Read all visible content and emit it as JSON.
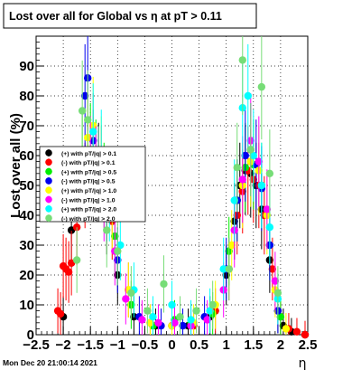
{
  "title": "Lost over all for Global vs   η at pT > 0.11",
  "footer_timestamp": "Mon Dec 20 21:00:14 2021",
  "chart_data": {
    "type": "scatter",
    "title": "Lost over all for Global vs   η at pT > 0.11",
    "xlabel": "η",
    "ylabel": "Lost over all (%)",
    "xlim": [
      -2.5,
      2.5
    ],
    "ylim": [
      0,
      100
    ],
    "x_ticks": [
      -2.5,
      -2,
      -1.5,
      -1,
      -0.5,
      0,
      0.5,
      1,
      1.5,
      2,
      2.5
    ],
    "x_tick_labels": [
      "−2.5",
      "−2",
      "−1.5",
      "−1",
      "−0.5",
      "0",
      "0.5",
      "1",
      "1.5",
      "2",
      "2.5"
    ],
    "y_ticks": [
      0,
      10,
      20,
      30,
      40,
      50,
      60,
      70,
      80,
      90
    ],
    "y_tick_labels": [
      "0",
      "10",
      "20",
      "30",
      "40",
      "50",
      "60",
      "70",
      "80",
      "90"
    ],
    "grid": true,
    "legend_position": "left-middle",
    "series": [
      {
        "name": "(+) with pT/|q| > 0.1",
        "color": "#000000",
        "x": [
          -2.0,
          -1.85,
          -1.55,
          -1.45,
          -1.35,
          -1.2,
          -1.0,
          -0.7,
          -0.3,
          0.0,
          0.3,
          0.7,
          1.0,
          1.15,
          1.25,
          1.35,
          1.45,
          1.55,
          1.65,
          1.8,
          1.95,
          2.05,
          2.2,
          2.45
        ],
        "y": [
          6,
          35,
          58,
          60,
          56,
          40,
          20,
          6,
          3,
          3,
          3,
          6,
          20,
          38,
          50,
          55,
          54,
          50,
          42,
          25,
          8,
          3,
          1,
          0
        ]
      },
      {
        "name": "(-) with pT/|q| > 0.1",
        "color": "#ff0000",
        "x": [
          -2.1,
          -2.05,
          -2.0,
          -1.95,
          -1.9,
          -1.85,
          -1.75,
          -1.6,
          -1.45,
          -1.3,
          -1.1,
          -0.8,
          -0.4,
          0.0,
          0.4,
          0.8,
          1.05,
          1.2,
          1.3,
          1.4,
          1.5,
          1.6,
          1.7,
          1.85,
          2.0,
          2.15,
          2.3,
          2.45
        ],
        "y": [
          8,
          7,
          23,
          22,
          21,
          24,
          36,
          50,
          58,
          55,
          38,
          15,
          4,
          3,
          3,
          8,
          22,
          40,
          48,
          55,
          52,
          50,
          40,
          22,
          6,
          2,
          1,
          0
        ]
      },
      {
        "name": "(+) with pT/|q| > 0.5",
        "color": "#00ee00",
        "x": [
          -1.65,
          -1.5,
          -1.4,
          -1.25,
          -1.05,
          -0.75,
          -0.35,
          0.05,
          0.35,
          0.75,
          1.05,
          1.2,
          1.35,
          1.5,
          1.65,
          1.8,
          2.0
        ],
        "y": [
          60,
          62,
          57,
          50,
          33,
          10,
          3,
          5,
          4,
          7,
          28,
          45,
          56,
          57,
          50,
          30,
          6
        ]
      },
      {
        "name": "(-) with pT/|q| > 0.5",
        "color": "#0000ee",
        "x": [
          -1.6,
          -1.55,
          -1.45,
          -1.35,
          -1.2,
          -1.0,
          -0.6,
          -0.2,
          0.2,
          0.6,
          1.0,
          1.2,
          1.35,
          1.45,
          1.55,
          1.65,
          1.8,
          1.95
        ],
        "y": [
          80,
          86,
          65,
          55,
          45,
          25,
          6,
          3,
          3,
          6,
          22,
          45,
          60,
          62,
          57,
          49,
          30,
          8
        ]
      },
      {
        "name": "(+) with pT/|q| > 1.0",
        "color": "#ffff00",
        "x": [
          -1.55,
          -1.45,
          -1.3,
          -1.1,
          -0.8,
          -0.4,
          0.0,
          0.4,
          0.8,
          1.1,
          1.3,
          1.45,
          1.6,
          1.75,
          1.9,
          2.1
        ],
        "y": [
          66,
          70,
          58,
          42,
          15,
          4,
          3,
          4,
          10,
          30,
          50,
          58,
          55,
          40,
          15,
          2
        ]
      },
      {
        "name": "(-) with pT/|q| > 1.0",
        "color": "#ff00ff",
        "x": [
          -1.5,
          -1.4,
          -1.25,
          -1.05,
          -0.85,
          -0.55,
          -0.25,
          0.05,
          0.35,
          0.65,
          0.95,
          1.15,
          1.3,
          1.45,
          1.6,
          1.75,
          1.9
        ],
        "y": [
          58,
          55,
          45,
          28,
          12,
          5,
          4,
          4,
          3,
          5,
          15,
          35,
          52,
          65,
          58,
          42,
          18
        ]
      },
      {
        "name": "(+) with pT/|q| > 2.0",
        "color": "#00ffff",
        "x": [
          -1.45,
          -1.3,
          -1.15,
          -0.95,
          -0.7,
          -0.35,
          0.0,
          0.35,
          0.7,
          0.95,
          1.15,
          1.3,
          1.4,
          1.5,
          1.65,
          1.8,
          1.95
        ],
        "y": [
          68,
          60,
          45,
          30,
          15,
          6,
          10,
          5,
          8,
          22,
          45,
          76,
          80,
          60,
          50,
          36,
          12
        ]
      },
      {
        "name": "(-) with pT/|q| > 2.0",
        "color": "#77dd77",
        "x": [
          -1.75,
          -1.65,
          -1.55,
          -1.35,
          -1.2,
          -1.0,
          -0.75,
          -0.45,
          -0.15,
          0.15,
          0.45,
          0.75,
          1.05,
          1.2,
          1.3,
          1.45,
          1.65,
          1.8,
          1.95
        ],
        "y": [
          25,
          75,
          72,
          55,
          35,
          28,
          14,
          8,
          17,
          6,
          8,
          10,
          22,
          56,
          92,
          62,
          83,
          54,
          14
        ]
      }
    ]
  }
}
